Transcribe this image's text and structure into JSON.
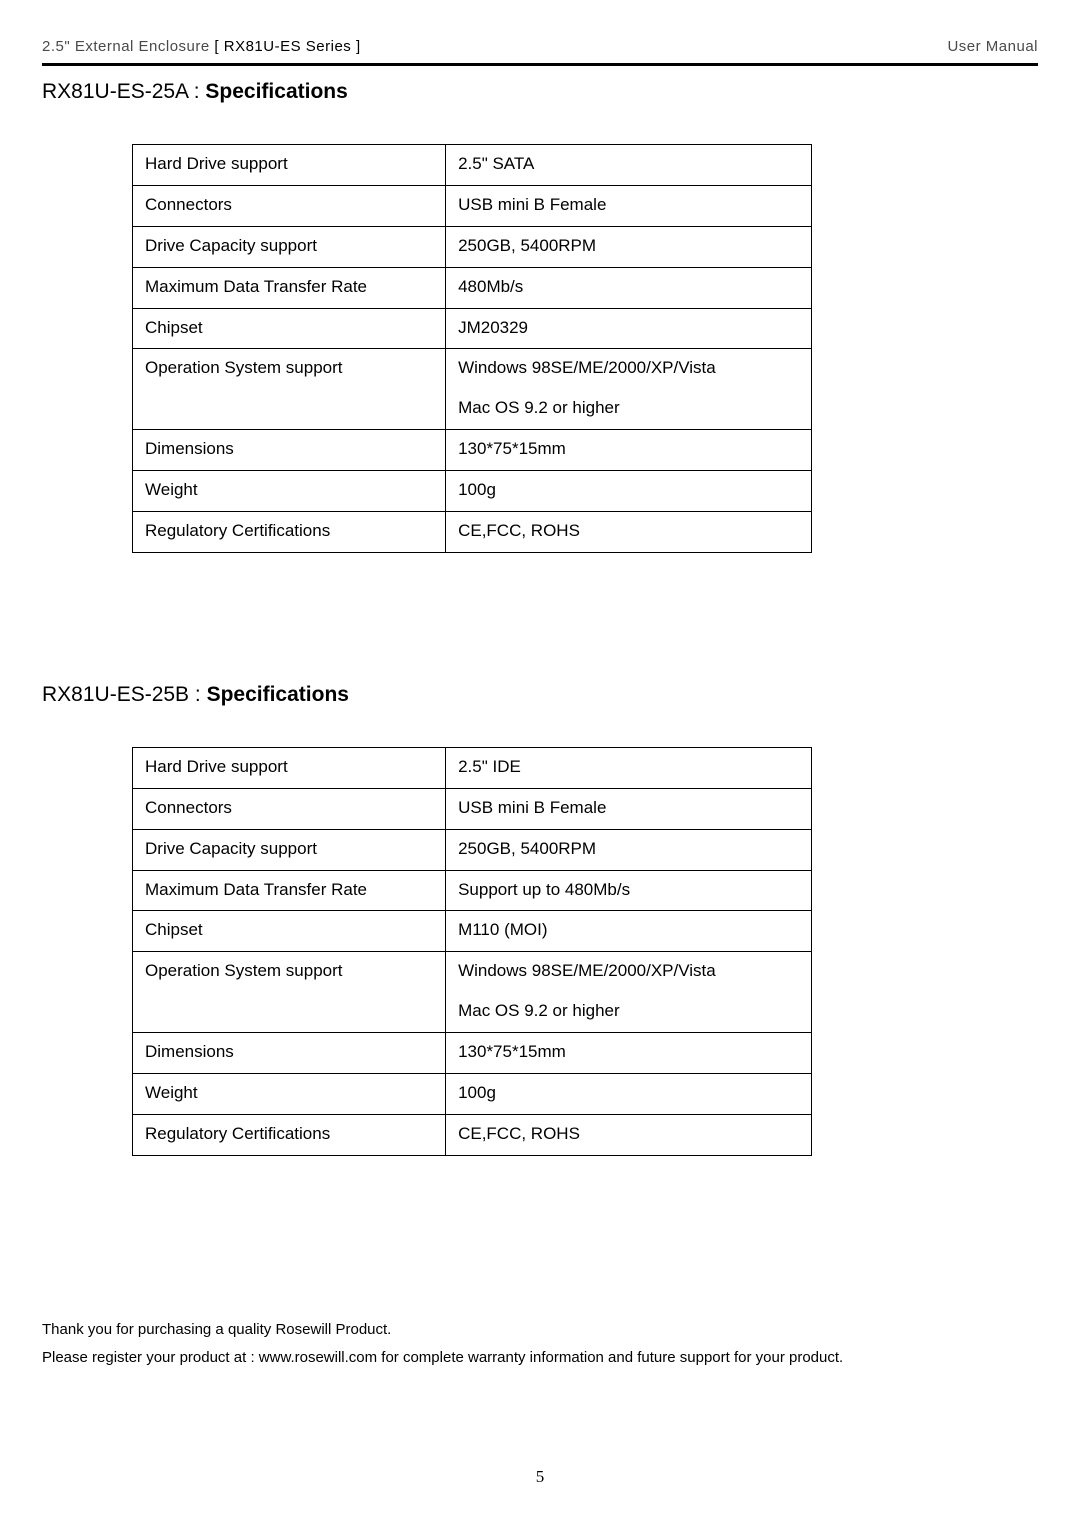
{
  "header": {
    "left_prefix": "2.5\" External Enclosure ",
    "left_series": "[ RX81U-ES Series ]",
    "right": "User Manual"
  },
  "sections": [
    {
      "title_prefix": "RX81U-ES-25A : ",
      "title_bold": "Specifications",
      "table_margin_bottom": "130px",
      "rows": [
        {
          "label": "Hard Drive support",
          "value": "2.5\" SATA"
        },
        {
          "label": "Connectors",
          "value": "USB mini B Female"
        },
        {
          "label": "Drive Capacity support",
          "value": "250GB, 5400RPM"
        },
        {
          "label": "Maximum Data Transfer Rate",
          "value": "480Mb/s"
        },
        {
          "label": "Chipset",
          "value": "JM20329"
        },
        {
          "label": "Operation System support",
          "value": "Windows 98SE/ME/2000/XP/Vista\nMac OS 9.2 or higher"
        },
        {
          "label": "Dimensions",
          "value": "130*75*15mm"
        },
        {
          "label": "Weight",
          "value": "100g"
        },
        {
          "label": "Regulatory Certifications",
          "value": "CE,FCC, ROHS"
        }
      ]
    },
    {
      "title_prefix": "RX81U-ES-25B : ",
      "title_bold": "Specifications",
      "table_margin_bottom": "0px",
      "rows": [
        {
          "label": "Hard Drive support",
          "value": "2.5\" IDE"
        },
        {
          "label": "Connectors",
          "value": "USB mini B Female"
        },
        {
          "label": "Drive Capacity support",
          "value": "250GB, 5400RPM"
        },
        {
          "label": "Maximum Data Transfer Rate",
          "value": "Support up to 480Mb/s"
        },
        {
          "label": "Chipset",
          "value": "M110 (MOI)"
        },
        {
          "label": "Operation System support",
          "value": "Windows 98SE/ME/2000/XP/Vista\nMac OS 9.2 or higher"
        },
        {
          "label": "Dimensions",
          "value": "130*75*15mm"
        },
        {
          "label": "Weight",
          "value": "100g"
        },
        {
          "label": "Regulatory Certifications",
          "value": "CE,FCC, ROHS"
        }
      ]
    }
  ],
  "footer": {
    "line1": "Thank you for purchasing a quality Rosewill Product.",
    "line2": "Please register your product at : www.rosewill.com for complete warranty information and future support for your product."
  },
  "page_number": "5"
}
